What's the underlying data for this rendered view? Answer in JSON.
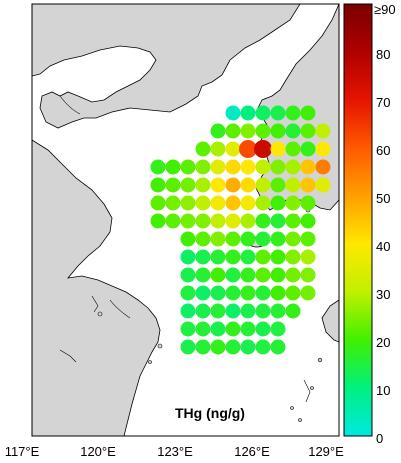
{
  "map": {
    "colors": {
      "land": "#d4d4d4",
      "sea": "#ffffff",
      "coast": "#000000"
    },
    "lon_ticks": [
      "117°E",
      "120°E",
      "123°E",
      "126°E",
      "129°E"
    ],
    "inset_label": "THg (ng/g)"
  },
  "colorbar": {
    "ticks": [
      "0",
      "10",
      "20",
      "30",
      "40",
      "50",
      "60",
      "70",
      "80",
      "≥90"
    ],
    "stops": [
      "#00e8e0",
      "#00f080",
      "#40f000",
      "#c0f000",
      "#ffe800",
      "#ffa000",
      "#ff5a00",
      "#e61400",
      "#b00000",
      "#7a0000"
    ]
  },
  "samples": [
    {
      "r": 0,
      "c": 3,
      "v": 3
    },
    {
      "r": 0,
      "c": 4,
      "v": 10
    },
    {
      "r": 0,
      "c": 5,
      "v": 12
    },
    {
      "r": 0,
      "c": 6,
      "v": 14
    },
    {
      "r": 0,
      "c": 7,
      "v": 18
    },
    {
      "r": 0,
      "c": 8,
      "v": 20
    },
    {
      "r": 1,
      "c": 2,
      "v": 18
    },
    {
      "r": 1,
      "c": 3,
      "v": 22
    },
    {
      "r": 1,
      "c": 4,
      "v": 25
    },
    {
      "r": 1,
      "c": 5,
      "v": 22
    },
    {
      "r": 1,
      "c": 6,
      "v": 20
    },
    {
      "r": 1,
      "c": 7,
      "v": 16
    },
    {
      "r": 1,
      "c": 8,
      "v": 22
    },
    {
      "r": 1,
      "c": 9,
      "v": 30
    },
    {
      "r": 2,
      "c": 1,
      "v": 22
    },
    {
      "r": 2,
      "c": 2,
      "v": 28
    },
    {
      "r": 2,
      "c": 3,
      "v": 35
    },
    {
      "r": 2,
      "c": 4,
      "v": 62
    },
    {
      "r": 2,
      "c": 5,
      "v": 75
    },
    {
      "r": 2,
      "c": 6,
      "v": 40
    },
    {
      "r": 2,
      "c": 7,
      "v": 22
    },
    {
      "r": 2,
      "c": 8,
      "v": 18
    },
    {
      "r": 2,
      "c": 9,
      "v": 40
    },
    {
      "r": 3,
      "c": -2,
      "v": 18
    },
    {
      "r": 3,
      "c": -1,
      "v": 20
    },
    {
      "r": 3,
      "c": 0,
      "v": 22
    },
    {
      "r": 3,
      "c": 1,
      "v": 25
    },
    {
      "r": 3,
      "c": 2,
      "v": 35
    },
    {
      "r": 3,
      "c": 3,
      "v": 42
    },
    {
      "r": 3,
      "c": 4,
      "v": 40
    },
    {
      "r": 3,
      "c": 5,
      "v": 30
    },
    {
      "r": 3,
      "c": 6,
      "v": 25
    },
    {
      "r": 3,
      "c": 7,
      "v": 28
    },
    {
      "r": 3,
      "c": 8,
      "v": 45
    },
    {
      "r": 3,
      "c": 9,
      "v": 55
    },
    {
      "r": 4,
      "c": -2,
      "v": 20
    },
    {
      "r": 4,
      "c": -1,
      "v": 22
    },
    {
      "r": 4,
      "c": 0,
      "v": 24
    },
    {
      "r": 4,
      "c": 1,
      "v": 28
    },
    {
      "r": 4,
      "c": 2,
      "v": 40
    },
    {
      "r": 4,
      "c": 3,
      "v": 48
    },
    {
      "r": 4,
      "c": 4,
      "v": 42
    },
    {
      "r": 4,
      "c": 5,
      "v": 30
    },
    {
      "r": 4,
      "c": 6,
      "v": 22
    },
    {
      "r": 4,
      "c": 7,
      "v": 30
    },
    {
      "r": 4,
      "c": 8,
      "v": 45
    },
    {
      "r": 4,
      "c": 9,
      "v": 35
    },
    {
      "r": 5,
      "c": -2,
      "v": 22
    },
    {
      "r": 5,
      "c": -1,
      "v": 24
    },
    {
      "r": 5,
      "c": 0,
      "v": 26
    },
    {
      "r": 5,
      "c": 1,
      "v": 30
    },
    {
      "r": 5,
      "c": 2,
      "v": 38
    },
    {
      "r": 5,
      "c": 3,
      "v": 45
    },
    {
      "r": 5,
      "c": 4,
      "v": 38
    },
    {
      "r": 5,
      "c": 5,
      "v": 28
    },
    {
      "r": 5,
      "c": 6,
      "v": 20
    },
    {
      "r": 5,
      "c": 7,
      "v": 25
    },
    {
      "r": 5,
      "c": 8,
      "v": 22
    },
    {
      "r": 6,
      "c": -2,
      "v": 20
    },
    {
      "r": 6,
      "c": -1,
      "v": 22
    },
    {
      "r": 6,
      "c": 0,
      "v": 24
    },
    {
      "r": 6,
      "c": 1,
      "v": 25
    },
    {
      "r": 6,
      "c": 2,
      "v": 30
    },
    {
      "r": 6,
      "c": 3,
      "v": 35
    },
    {
      "r": 6,
      "c": 4,
      "v": 28
    },
    {
      "r": 6,
      "c": 5,
      "v": 18
    },
    {
      "r": 6,
      "c": 6,
      "v": 16
    },
    {
      "r": 6,
      "c": 7,
      "v": 22
    },
    {
      "r": 6,
      "c": 8,
      "v": 20
    },
    {
      "r": 7,
      "c": 0,
      "v": 20
    },
    {
      "r": 7,
      "c": 1,
      "v": 22
    },
    {
      "r": 7,
      "c": 2,
      "v": 25
    },
    {
      "r": 7,
      "c": 3,
      "v": 22
    },
    {
      "r": 7,
      "c": 4,
      "v": 18
    },
    {
      "r": 7,
      "c": 5,
      "v": 16
    },
    {
      "r": 7,
      "c": 6,
      "v": 18
    },
    {
      "r": 7,
      "c": 7,
      "v": 24
    },
    {
      "r": 7,
      "c": 8,
      "v": 22
    },
    {
      "r": 8,
      "c": 0,
      "v": 12
    },
    {
      "r": 8,
      "c": 1,
      "v": 14
    },
    {
      "r": 8,
      "c": 2,
      "v": 16
    },
    {
      "r": 8,
      "c": 3,
      "v": 18
    },
    {
      "r": 8,
      "c": 4,
      "v": 15
    },
    {
      "r": 8,
      "c": 5,
      "v": 22
    },
    {
      "r": 8,
      "c": 6,
      "v": 20
    },
    {
      "r": 8,
      "c": 7,
      "v": 25
    },
    {
      "r": 8,
      "c": 8,
      "v": 28
    },
    {
      "r": 9,
      "c": 0,
      "v": 14
    },
    {
      "r": 9,
      "c": 1,
      "v": 16
    },
    {
      "r": 9,
      "c": 2,
      "v": 20
    },
    {
      "r": 9,
      "c": 3,
      "v": 15
    },
    {
      "r": 9,
      "c": 4,
      "v": 18
    },
    {
      "r": 9,
      "c": 5,
      "v": 22
    },
    {
      "r": 9,
      "c": 6,
      "v": 20
    },
    {
      "r": 9,
      "c": 7,
      "v": 24
    },
    {
      "r": 9,
      "c": 8,
      "v": 25
    },
    {
      "r": 10,
      "c": 0,
      "v": 15
    },
    {
      "r": 10,
      "c": 1,
      "v": 12
    },
    {
      "r": 10,
      "c": 2,
      "v": 14
    },
    {
      "r": 10,
      "c": 3,
      "v": 16
    },
    {
      "r": 10,
      "c": 4,
      "v": 18
    },
    {
      "r": 10,
      "c": 5,
      "v": 16
    },
    {
      "r": 10,
      "c": 6,
      "v": 20
    },
    {
      "r": 10,
      "c": 7,
      "v": 22
    },
    {
      "r": 10,
      "c": 8,
      "v": 24
    },
    {
      "r": 11,
      "c": 0,
      "v": 12
    },
    {
      "r": 11,
      "c": 1,
      "v": 14
    },
    {
      "r": 11,
      "c": 2,
      "v": 16
    },
    {
      "r": 11,
      "c": 3,
      "v": 12
    },
    {
      "r": 11,
      "c": 4,
      "v": 14
    },
    {
      "r": 11,
      "c": 5,
      "v": 15
    },
    {
      "r": 11,
      "c": 6,
      "v": 16
    },
    {
      "r": 11,
      "c": 7,
      "v": 18
    },
    {
      "r": 12,
      "c": 0,
      "v": 15
    },
    {
      "r": 12,
      "c": 1,
      "v": 16
    },
    {
      "r": 12,
      "c": 2,
      "v": 14
    },
    {
      "r": 12,
      "c": 3,
      "v": 18
    },
    {
      "r": 12,
      "c": 4,
      "v": 16
    },
    {
      "r": 12,
      "c": 5,
      "v": 14
    },
    {
      "r": 12,
      "c": 6,
      "v": 15
    },
    {
      "r": 13,
      "c": 0,
      "v": 14
    },
    {
      "r": 13,
      "c": 1,
      "v": 16
    },
    {
      "r": 13,
      "c": 2,
      "v": 18
    },
    {
      "r": 13,
      "c": 3,
      "v": 16
    },
    {
      "r": 13,
      "c": 4,
      "v": 14
    },
    {
      "r": 13,
      "c": 5,
      "v": 15
    },
    {
      "r": 13,
      "c": 6,
      "v": 16
    }
  ]
}
